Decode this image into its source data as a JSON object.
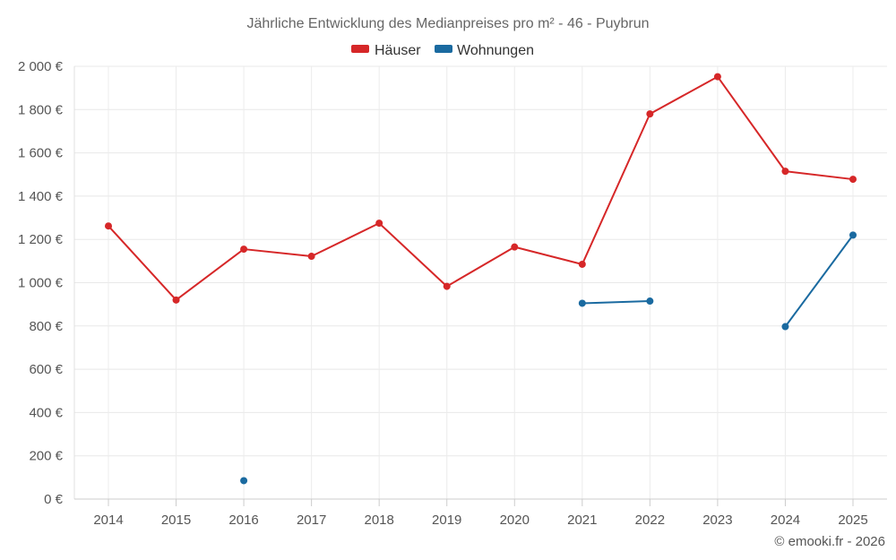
{
  "chart_data": {
    "type": "line",
    "title": "Jährliche Entwicklung des Medianpreises pro m² - 46 - Puybrun",
    "categories": [
      "2014",
      "2015",
      "2016",
      "2017",
      "2018",
      "2019",
      "2020",
      "2021",
      "2022",
      "2023",
      "2024",
      "2025"
    ],
    "y_ticks": [
      "0 €",
      "200 €",
      "400 €",
      "600 €",
      "800 €",
      "1 000 €",
      "1 200 €",
      "1 400 €",
      "1 600 €",
      "1 800 €",
      "2 000 €"
    ],
    "ylim": [
      0,
      2000
    ],
    "grid": true,
    "legend_position": "top-center",
    "series": [
      {
        "name": "Häuser",
        "color": "#d62728",
        "values": [
          1262,
          920,
          1155,
          1122,
          1275,
          983,
          1165,
          1085,
          1780,
          1952,
          1515,
          1478
        ]
      },
      {
        "name": "Wohnungen",
        "color": "#1a6aa0",
        "values": [
          null,
          null,
          85,
          null,
          null,
          null,
          null,
          905,
          915,
          null,
          797,
          1220
        ]
      }
    ],
    "credit": "© emooki.fr - 2026"
  }
}
